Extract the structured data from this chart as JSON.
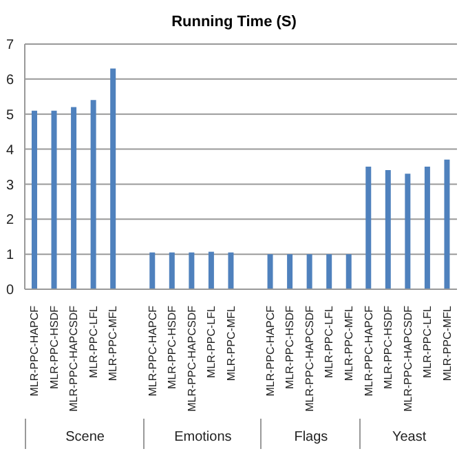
{
  "chart_data": {
    "type": "bar",
    "title": "Running Time (S)",
    "categories": [
      "MLR-PPC-HAPCF",
      "MLR-PPC-HSDF",
      "MLR-PPC-HAPCSDF",
      "MLR-PPC-LFL",
      "MLR-PPC-MFL",
      null,
      "MLR-PPC-HAPCF",
      "MLR-PPC-HSDF",
      "MLR-PPC-HAPCSDF",
      "MLR-PPC-LFL",
      "MLR-PPC-MFL",
      null,
      "MLR-PPC-HAPCF",
      "MLR-PPC-HSDF",
      "MLR-PPC-HAPCSDF",
      "MLR-PPC-LFL",
      "MLR-PPC-MFL",
      "MLR-PPC-HAPCF",
      "MLR-PPC-HSDF",
      "MLR-PPC-HAPCSDF",
      "MLR-PPC-LFL",
      "MLR-PPC-MFL"
    ],
    "values": [
      5.1,
      5.1,
      5.2,
      5.4,
      6.3,
      null,
      1.05,
      1.05,
      1.05,
      1.07,
      1.05,
      null,
      1.0,
      1.0,
      1.0,
      1.0,
      1.0,
      3.5,
      3.4,
      3.3,
      3.5,
      3.7
    ],
    "color": "#4f81bd",
    "annotations": [
      "Scene",
      "Emotions",
      "Flags",
      "Yeast"
    ],
    "ylim": [
      0,
      7
    ],
    "yticks": [
      0,
      1,
      2,
      3,
      4,
      5,
      6,
      7
    ],
    "grid": "y"
  }
}
